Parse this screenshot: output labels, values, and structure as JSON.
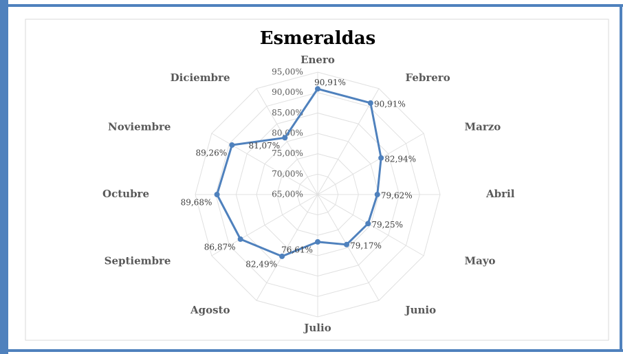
{
  "chart_data": {
    "type": "radar",
    "title": "Esmeraldas",
    "categories": [
      "Enero",
      "Febrero",
      "Marzo",
      "Abril",
      "Mayo",
      "Junio",
      "Julio",
      "Agosto",
      "Septiembre",
      "Octubre",
      "Noviembre",
      "Diciembre"
    ],
    "series": [
      {
        "name": "Esmeraldas",
        "color": "#4f81bd",
        "values": [
          90.91,
          90.91,
          82.94,
          79.62,
          79.25,
          79.17,
          76.61,
          82.49,
          86.87,
          89.68,
          89.26,
          81.07
        ],
        "value_labels": [
          "90,91%",
          "90,91%",
          "82,94%",
          "79,62%",
          "79,25%",
          "79,17%",
          "76,61%",
          "82,49%",
          "86,87%",
          "89,68%",
          "89,26%",
          "81,07%"
        ]
      }
    ],
    "ylim": [
      65,
      95
    ],
    "yticks": [
      {
        "value": 65,
        "label": "65,00%"
      },
      {
        "value": 70,
        "label": "70,00%"
      },
      {
        "value": 75,
        "label": "75,00%"
      },
      {
        "value": 80,
        "label": "80,00%"
      },
      {
        "value": 85,
        "label": "85,00%"
      },
      {
        "value": 90,
        "label": "90,00%"
      },
      {
        "value": 95,
        "label": "95,00%"
      }
    ],
    "grid": true
  }
}
